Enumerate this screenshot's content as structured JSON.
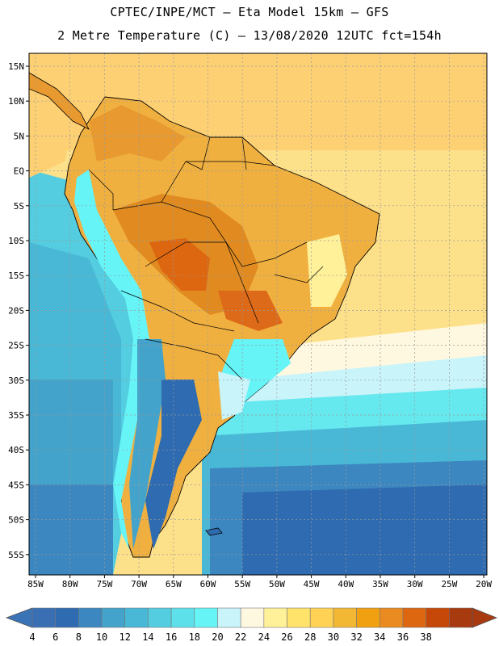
{
  "header": {
    "line1": "CPTEC/INPE/MCT –  Eta Model 15km – GFS",
    "line2": "2 Metre Temperature (C) – 13/08/2020 12UTC fct=154h"
  },
  "map": {
    "lat_labels": [
      "15N",
      "10N",
      "5N",
      "EQ",
      "5S",
      "10S",
      "15S",
      "20S",
      "25S",
      "30S",
      "35S",
      "40S",
      "45S",
      "50S",
      "55S"
    ],
    "lon_labels": [
      "85W",
      "80W",
      "75W",
      "70W",
      "65W",
      "60W",
      "55W",
      "50W",
      "45W",
      "40W",
      "35W",
      "30W",
      "25W",
      "20W"
    ]
  },
  "colorbar": {
    "labels": [
      "4",
      "6",
      "8",
      "10",
      "12",
      "14",
      "16",
      "18",
      "20",
      "22",
      "24",
      "26",
      "28",
      "30",
      "32",
      "34",
      "36",
      "38"
    ],
    "colors": [
      "#3a6fb4",
      "#2e6bb0",
      "#3c87c0",
      "#43a3cb",
      "#49b8d6",
      "#54cde0",
      "#5ee0ea",
      "#66f4f7",
      "#c8f4fa",
      "#fff8e0",
      "#fff199",
      "#ffe36b",
      "#ffd255",
      "#f2b733",
      "#f0a010",
      "#e98b20",
      "#dd6610",
      "#c64808",
      "#a83a10"
    ]
  }
}
